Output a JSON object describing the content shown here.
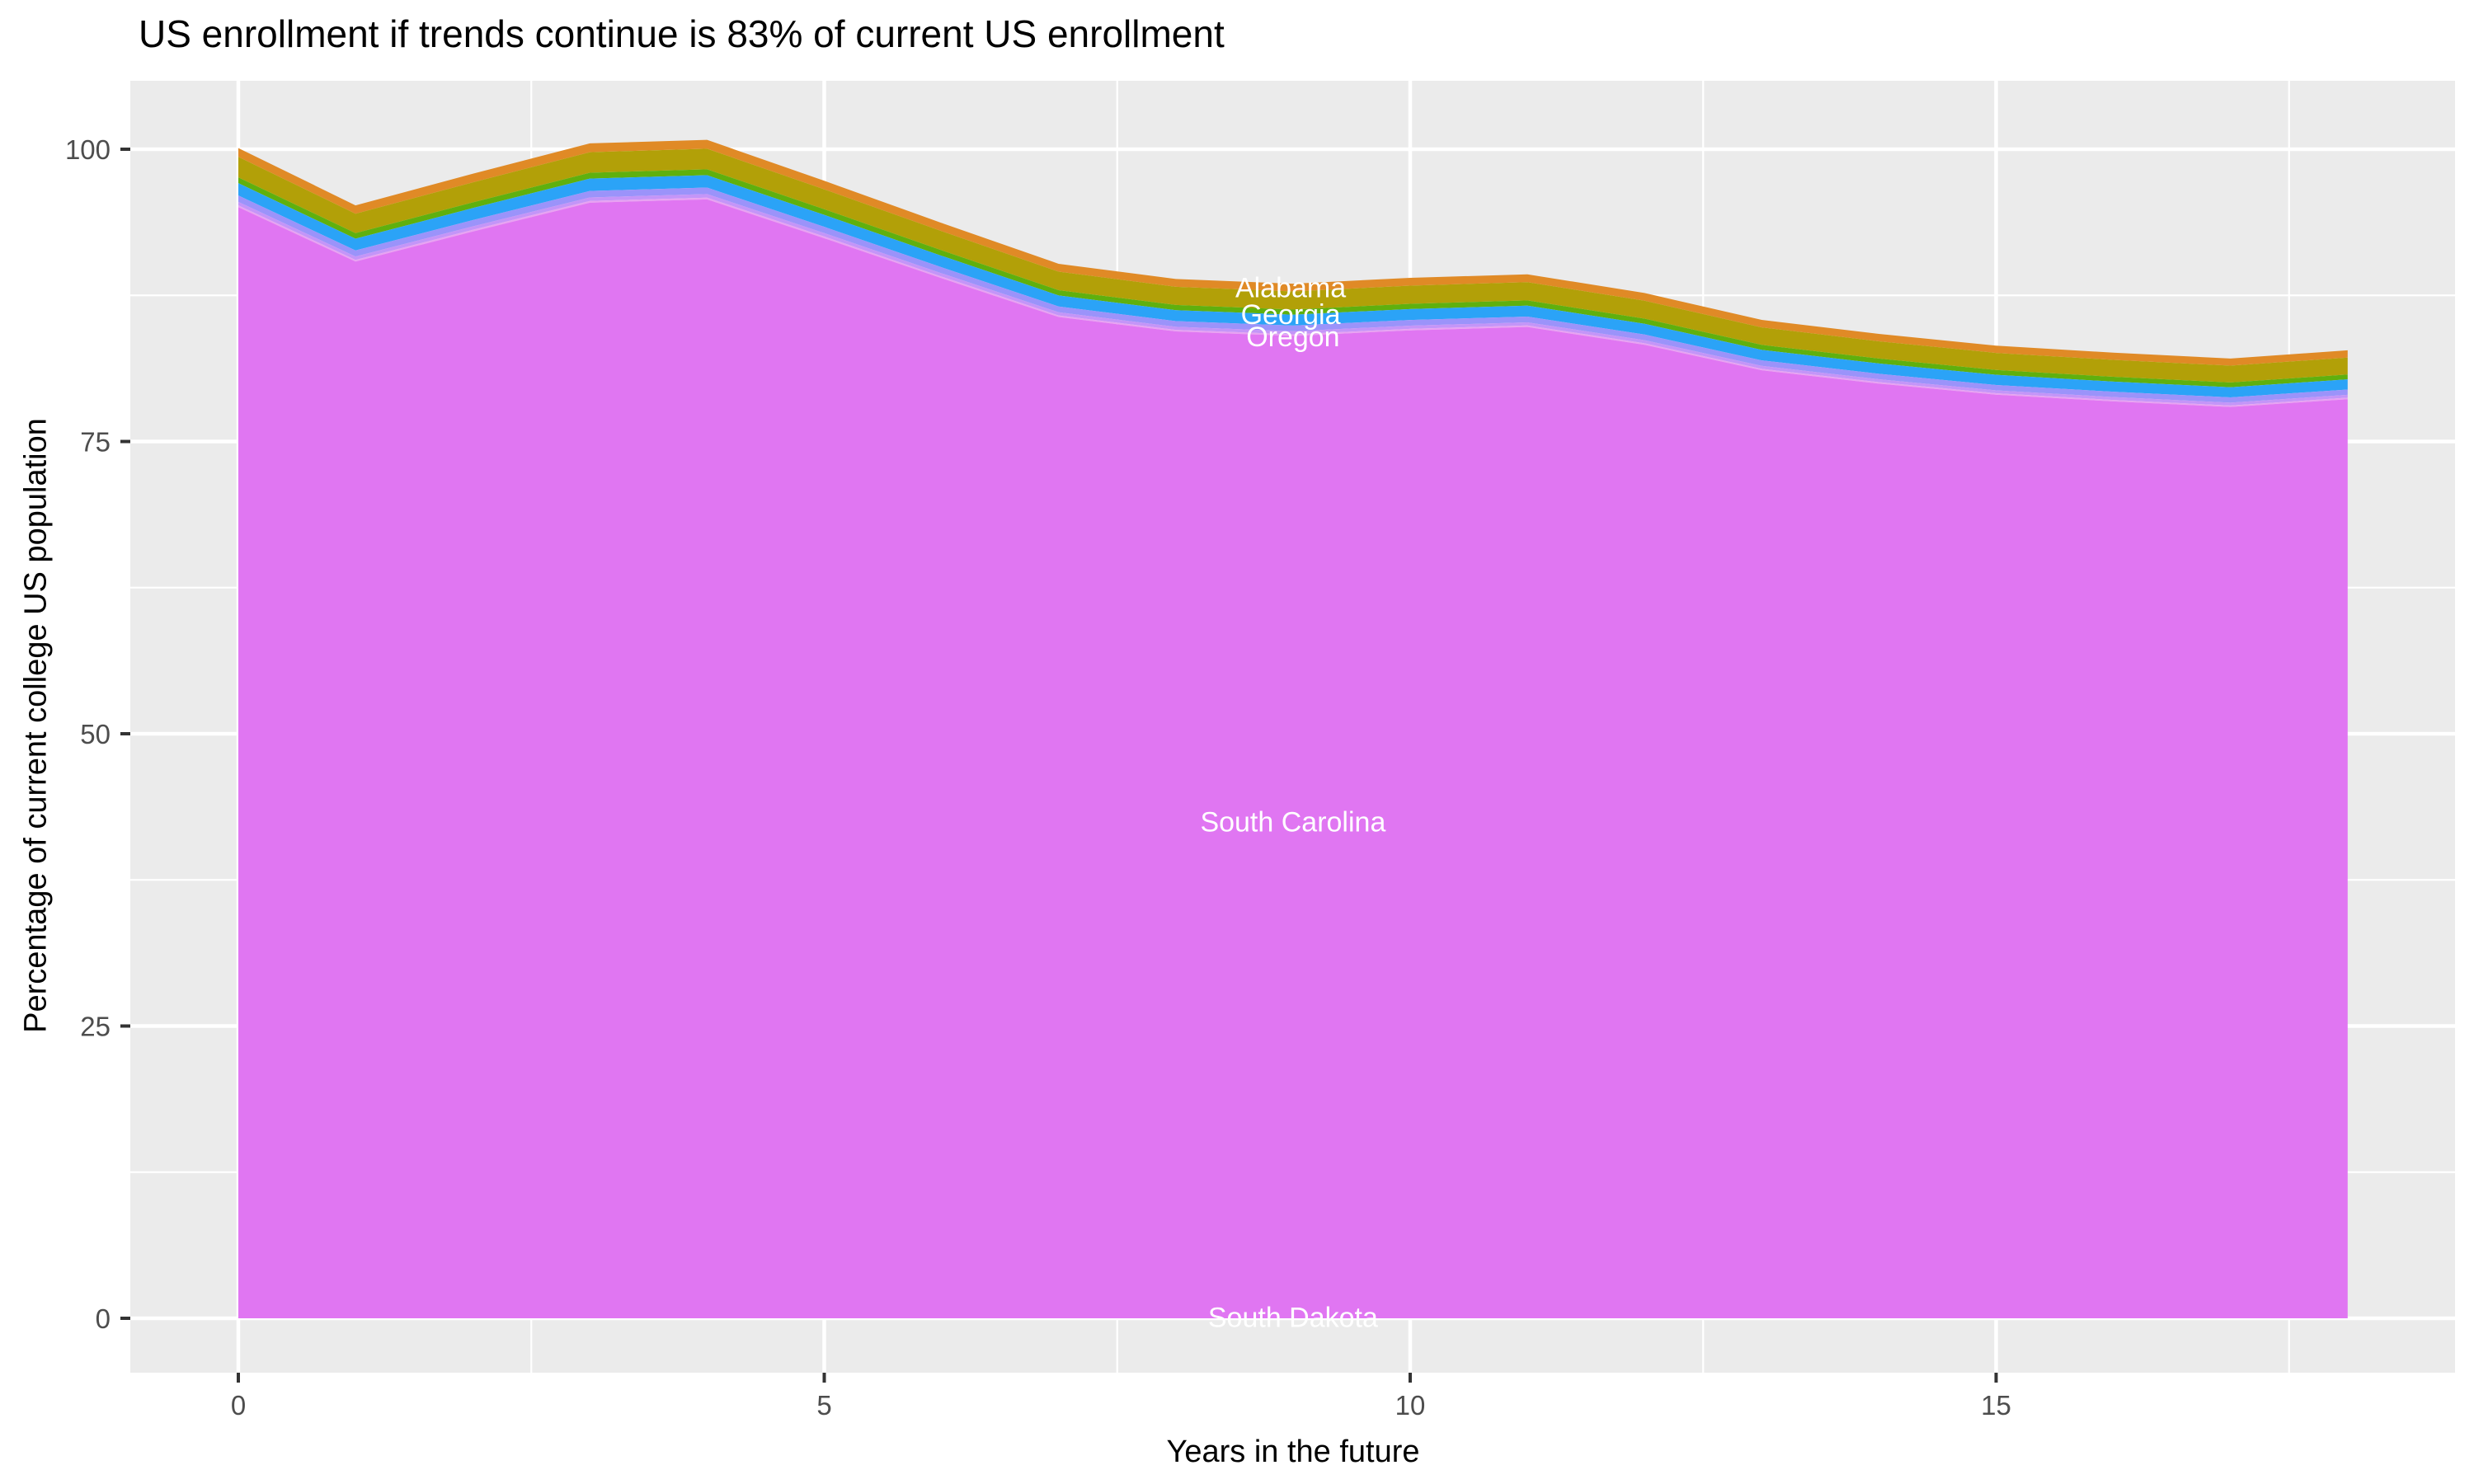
{
  "title": {
    "text": "US enrollment if trends continue is 83% of current US enrollment"
  },
  "chart_data": {
    "type": "area",
    "stacked": true,
    "title": "US enrollment if trends continue is 83% of current US enrollment",
    "xlabel": "Years in the future",
    "ylabel": "Percentage of current college US population",
    "x": [
      0,
      1,
      2,
      3,
      4,
      5,
      6,
      7,
      8,
      9,
      10,
      11,
      12,
      13,
      14,
      15,
      16,
      17,
      18
    ],
    "totals": [
      100.1,
      95.2,
      97.9,
      100.5,
      100.8,
      97.3,
      93.7,
      90.2,
      88.9,
      88.5,
      89.0,
      89.3,
      87.7,
      85.4,
      84.2,
      83.2,
      82.6,
      82.1,
      82.8
    ],
    "series": [
      {
        "label": "",
        "note": "thin top band",
        "color": "#E08A26",
        "frac_of_total": 0.0075
      },
      {
        "label": "Alabama",
        "color": "#B2A008",
        "frac_of_total": 0.0175
      },
      {
        "label": "",
        "note": "thin band",
        "color": "#5FB00E",
        "frac_of_total": 0.005
      },
      {
        "label": "Georgia",
        "color": "#2BA3F7",
        "frac_of_total": 0.0105
      },
      {
        "label": "Oregon",
        "color": "#9B93FA",
        "frac_of_total": 0.0055
      },
      {
        "label": "",
        "note": "thin band",
        "color": "#C495F8",
        "frac_of_total": 0.003
      },
      {
        "label": "",
        "note": "thin band",
        "color": "#E8A2F2",
        "frac_of_total": 0.0015
      },
      {
        "label": "South Carolina",
        "color": "#E076F2",
        "frac_of_total": 0.9545
      },
      {
        "label": "South Dakota",
        "color": "#FF62BC",
        "frac_of_total": 0.0
      }
    ],
    "labels": [
      {
        "text": "Alabama",
        "x": 8.98,
        "y": 88.2
      },
      {
        "text": "Georgia",
        "x": 8.98,
        "y": 85.9
      },
      {
        "text": "Oregon",
        "x": 9.0,
        "y": 84.0
      },
      {
        "text": "South Carolina",
        "x": 9.0,
        "y": 42.5
      },
      {
        "text": "South Dakota",
        "x": 9.0,
        "y": 0.1
      }
    ],
    "axes": {
      "x": {
        "ticks": [
          0,
          5,
          10,
          15
        ],
        "minor": [
          2.5,
          7.5,
          12.5,
          17.5
        ],
        "range": [
          -0.9,
          18.9
        ]
      },
      "y": {
        "ticks": [
          0,
          25,
          50,
          75,
          100
        ],
        "minor": [
          12.5,
          37.5,
          62.5,
          87.5
        ],
        "range": [
          -5.0,
          105.8
        ]
      }
    },
    "legend_position": "none",
    "grid": true
  },
  "theme": {
    "panel_bg": "#EBEBEB",
    "grid_color": "#FFFFFF",
    "tick_mark_color": "#333333",
    "tick_label_color": "#4D4D4D",
    "area_label_color": "#FFFFFF",
    "title_color": "#000000"
  },
  "axis_tick_labels": {
    "y": [
      "100",
      "75",
      "50",
      "25",
      "0"
    ],
    "x": [
      "0",
      "5",
      "10",
      "15"
    ]
  },
  "axis_titles": {
    "x": "Years in the future",
    "y": "Percentage of current college US population"
  }
}
